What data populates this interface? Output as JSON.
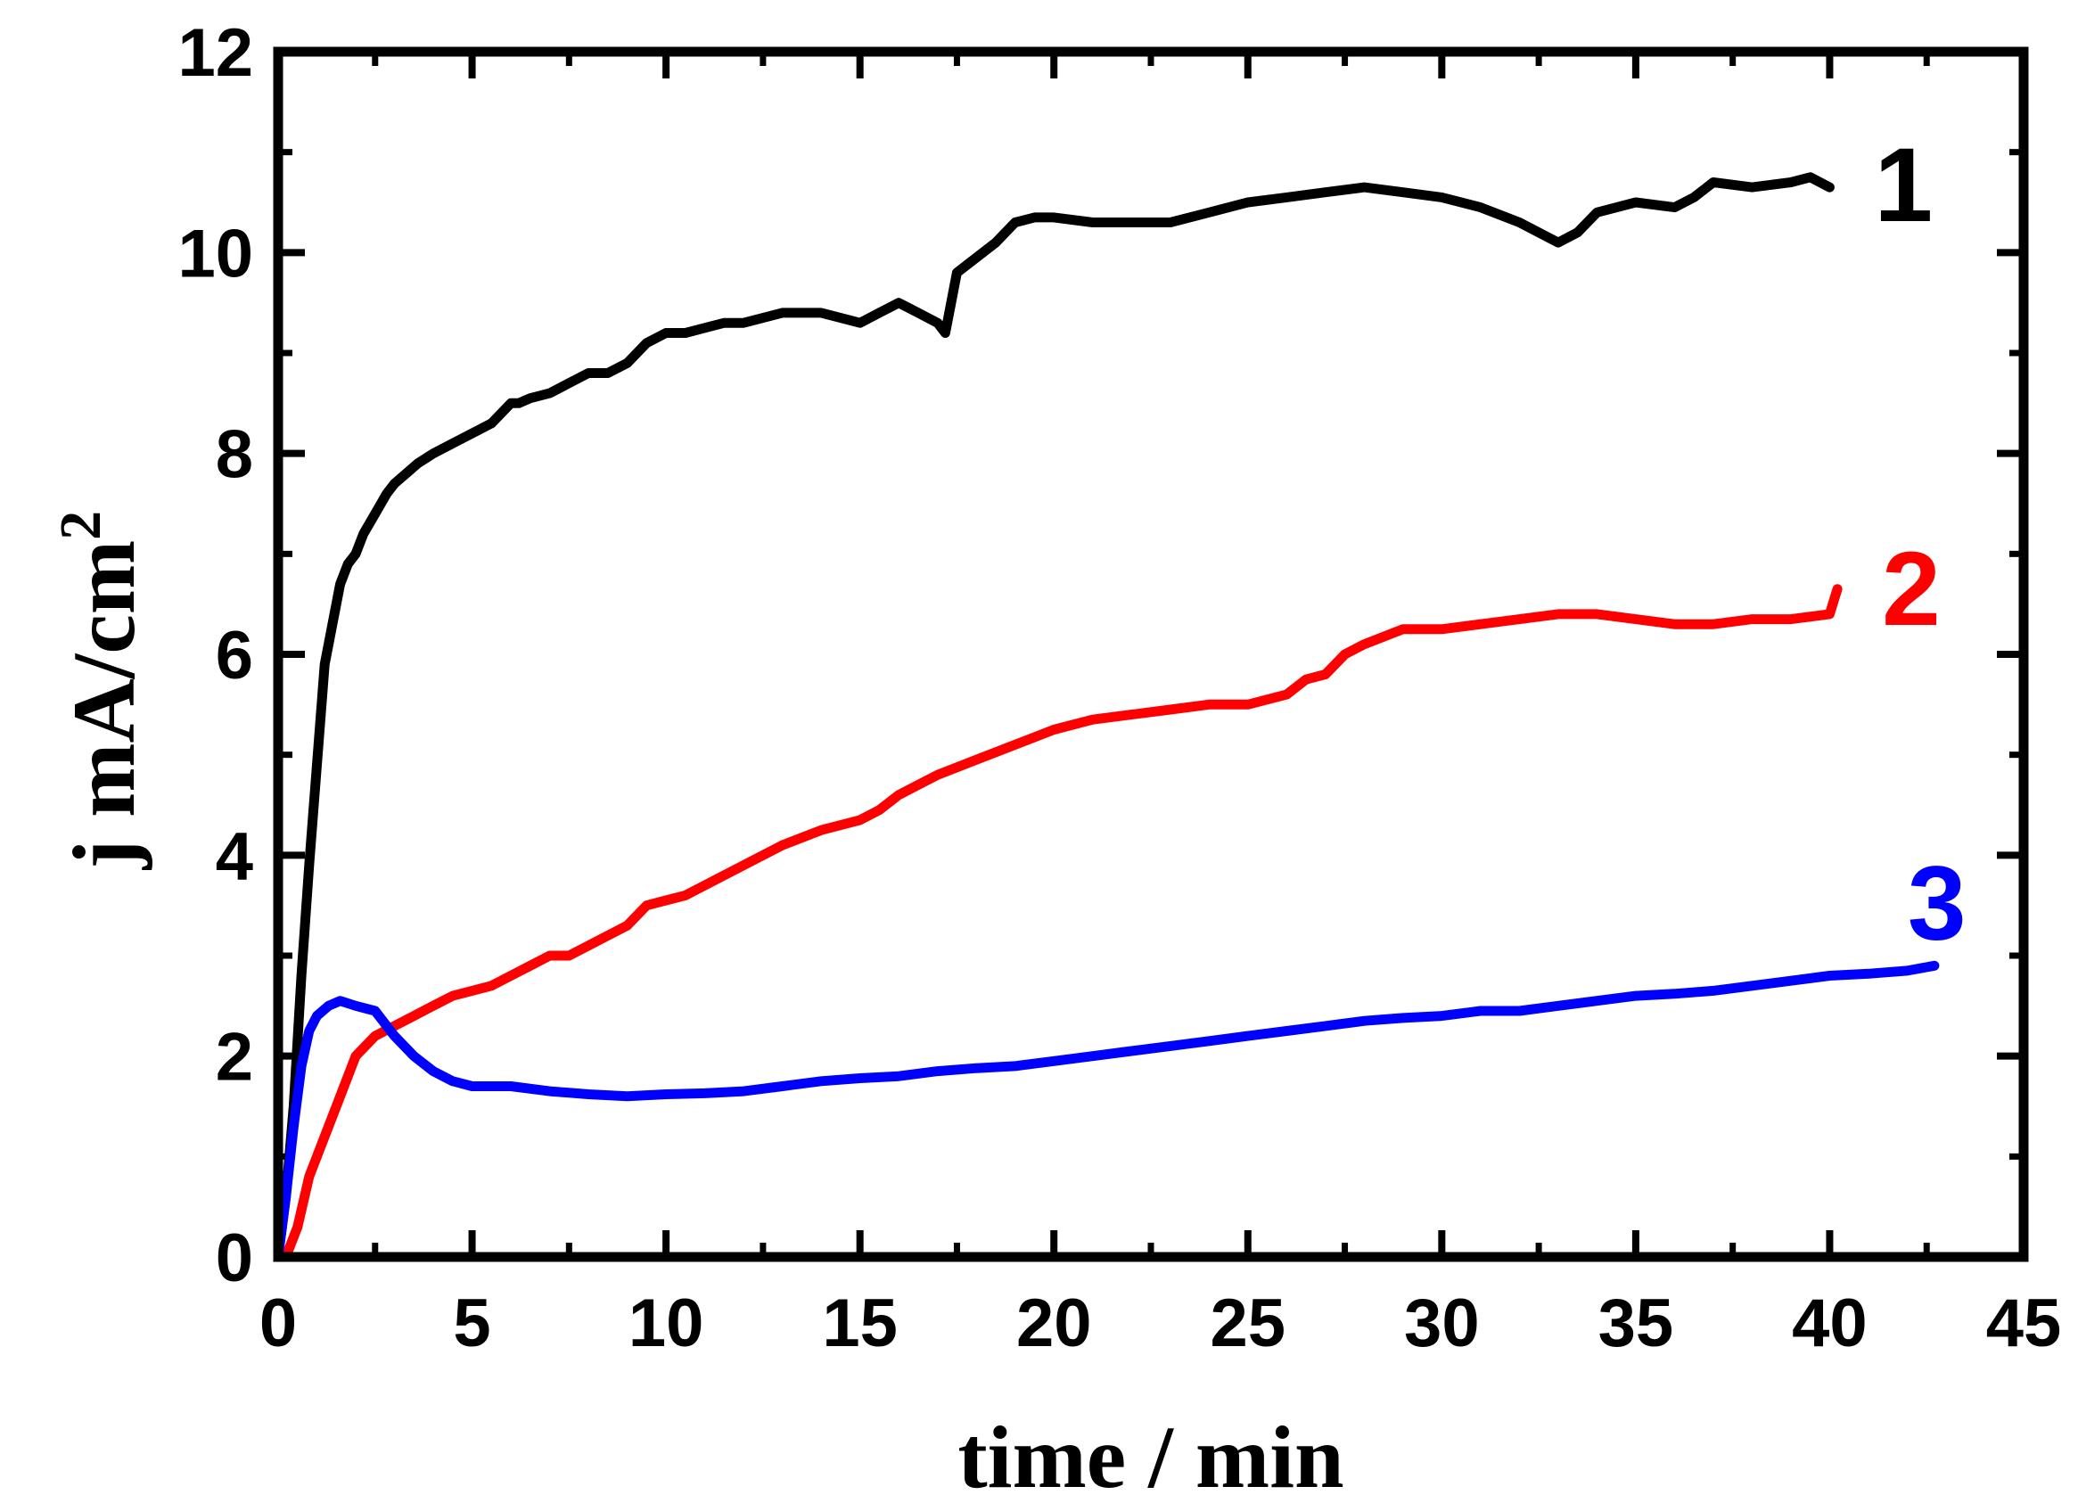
{
  "chart_data": {
    "type": "line",
    "xlabel": "time / min",
    "ylabel": "j mA/cm",
    "ylabel_superscript": "2",
    "xlim": [
      0,
      45
    ],
    "ylim": [
      0,
      12
    ],
    "x_ticks": [
      0,
      5,
      10,
      15,
      20,
      25,
      30,
      35,
      40,
      45
    ],
    "y_ticks": [
      0,
      2,
      4,
      6,
      8,
      10,
      12
    ],
    "grid": false,
    "series": [
      {
        "name": "1",
        "color": "#000000",
        "x": [
          0.0,
          0.2,
          0.4,
          0.6,
          0.8,
          1.0,
          1.2,
          1.4,
          1.6,
          1.8,
          2.0,
          2.2,
          2.5,
          2.8,
          3.0,
          3.3,
          3.6,
          4.0,
          4.5,
          5.0,
          5.5,
          6.0,
          6.2,
          6.5,
          7.0,
          7.5,
          8.0,
          8.5,
          9.0,
          9.5,
          10.0,
          10.5,
          11.0,
          11.5,
          12.0,
          13.0,
          14.0,
          15.0,
          15.5,
          16.0,
          16.5,
          17.0,
          17.2,
          17.5,
          18.0,
          18.5,
          19.0,
          19.5,
          20.0,
          21.0,
          22.0,
          23.0,
          24.0,
          25.0,
          26.0,
          27.0,
          28.0,
          29.0,
          30.0,
          31.0,
          32.0,
          33.0,
          33.5,
          34.0,
          35.0,
          36.0,
          36.5,
          37.0,
          38.0,
          39.0,
          39.5,
          40.0
        ],
        "values": [
          0.0,
          0.6,
          1.5,
          2.8,
          3.9,
          4.9,
          5.9,
          6.3,
          6.7,
          6.9,
          7.0,
          7.2,
          7.4,
          7.6,
          7.7,
          7.8,
          7.9,
          8.0,
          8.1,
          8.2,
          8.3,
          8.5,
          8.5,
          8.55,
          8.6,
          8.7,
          8.8,
          8.8,
          8.9,
          9.1,
          9.2,
          9.2,
          9.25,
          9.3,
          9.3,
          9.4,
          9.4,
          9.3,
          9.4,
          9.5,
          9.4,
          9.3,
          9.2,
          9.8,
          9.95,
          10.1,
          10.3,
          10.35,
          10.35,
          10.3,
          10.3,
          10.3,
          10.4,
          10.5,
          10.55,
          10.6,
          10.65,
          10.6,
          10.55,
          10.45,
          10.3,
          10.1,
          10.2,
          10.4,
          10.5,
          10.45,
          10.55,
          10.7,
          10.65,
          10.7,
          10.75,
          10.65
        ]
      },
      {
        "name": "2",
        "color": "#ff0000",
        "x": [
          0.2,
          0.5,
          0.8,
          1.0,
          1.5,
          2.0,
          2.5,
          3.0,
          3.5,
          4.0,
          4.5,
          5.0,
          5.5,
          6.0,
          6.5,
          7.0,
          7.5,
          8.0,
          8.5,
          9.0,
          9.5,
          10.0,
          10.5,
          11.0,
          12.0,
          13.0,
          14.0,
          15.0,
          15.5,
          16.0,
          17.0,
          18.0,
          19.0,
          20.0,
          21.0,
          22.0,
          23.0,
          24.0,
          25.0,
          26.0,
          26.5,
          27.0,
          27.5,
          28.0,
          29.0,
          30.0,
          31.0,
          32.0,
          33.0,
          34.0,
          35.0,
          36.0,
          37.0,
          38.0,
          39.0,
          40.0,
          40.2
        ],
        "values": [
          0.0,
          0.3,
          0.8,
          1.0,
          1.5,
          2.0,
          2.2,
          2.3,
          2.4,
          2.5,
          2.6,
          2.65,
          2.7,
          2.8,
          2.9,
          3.0,
          3.0,
          3.1,
          3.2,
          3.3,
          3.5,
          3.55,
          3.6,
          3.7,
          3.9,
          4.1,
          4.25,
          4.35,
          4.45,
          4.6,
          4.8,
          4.95,
          5.1,
          5.25,
          5.35,
          5.4,
          5.45,
          5.5,
          5.5,
          5.6,
          5.75,
          5.8,
          6.0,
          6.1,
          6.25,
          6.25,
          6.3,
          6.35,
          6.4,
          6.4,
          6.35,
          6.3,
          6.3,
          6.35,
          6.35,
          6.4,
          6.65
        ]
      },
      {
        "name": "3",
        "color": "#0000ff",
        "x": [
          0.0,
          0.2,
          0.4,
          0.6,
          0.8,
          1.0,
          1.3,
          1.6,
          2.0,
          2.5,
          3.0,
          3.5,
          4.0,
          4.5,
          5.0,
          5.5,
          6.0,
          7.0,
          8.0,
          9.0,
          10.0,
          11.0,
          12.0,
          13.0,
          14.0,
          15.0,
          16.0,
          17.0,
          18.0,
          19.0,
          20.0,
          21.0,
          22.0,
          23.0,
          24.0,
          25.0,
          26.0,
          27.0,
          28.0,
          29.0,
          30.0,
          31.0,
          32.0,
          33.0,
          34.0,
          35.0,
          36.0,
          37.0,
          38.0,
          39.0,
          40.0,
          41.0,
          42.0,
          42.7
        ],
        "values": [
          0.0,
          0.6,
          1.3,
          1.9,
          2.25,
          2.4,
          2.5,
          2.55,
          2.5,
          2.45,
          2.2,
          2.0,
          1.85,
          1.75,
          1.7,
          1.7,
          1.7,
          1.65,
          1.62,
          1.6,
          1.62,
          1.63,
          1.65,
          1.7,
          1.75,
          1.78,
          1.8,
          1.85,
          1.88,
          1.9,
          1.95,
          2.0,
          2.05,
          2.1,
          2.15,
          2.2,
          2.25,
          2.3,
          2.35,
          2.38,
          2.4,
          2.45,
          2.45,
          2.5,
          2.55,
          2.6,
          2.62,
          2.65,
          2.7,
          2.75,
          2.8,
          2.82,
          2.85,
          2.9
        ]
      }
    ]
  }
}
